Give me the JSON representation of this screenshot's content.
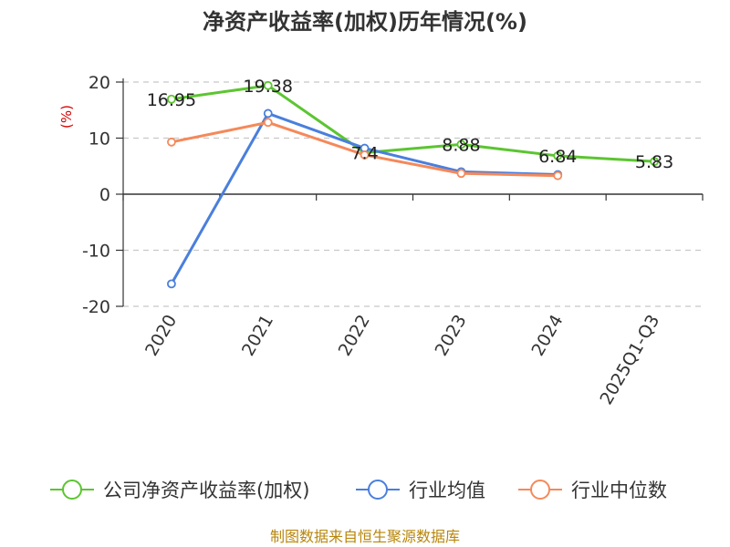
{
  "chart_data": {
    "type": "line",
    "title": "净资产收益率(加权)历年情况(%)",
    "ylabel": "(%)",
    "xlabel": "",
    "categories": [
      "2020",
      "2021",
      "2022",
      "2023",
      "2024",
      "2025Q1-Q3"
    ],
    "ylim": [
      -20,
      20
    ],
    "yticks": [
      20,
      10,
      0,
      -10,
      -20
    ],
    "grid": true,
    "legend_position": "bottom",
    "series": [
      {
        "name": "公司净资产收益率(加权)",
        "color": "#5cc531",
        "values": [
          16.95,
          19.38,
          7.4,
          8.88,
          6.84,
          5.83
        ],
        "labels": [
          "16.95",
          "19.38",
          "7.4",
          "8.88",
          "6.84",
          "5.83"
        ]
      },
      {
        "name": "行业均值",
        "color": "#4a7fdc",
        "values": [
          -16.0,
          14.4,
          8.2,
          4.0,
          3.5,
          null
        ]
      },
      {
        "name": "行业中位数",
        "color": "#f5895a",
        "values": [
          9.3,
          12.8,
          7.0,
          3.7,
          3.3,
          null
        ]
      }
    ],
    "source": "制图数据来自恒生聚源数据库"
  }
}
